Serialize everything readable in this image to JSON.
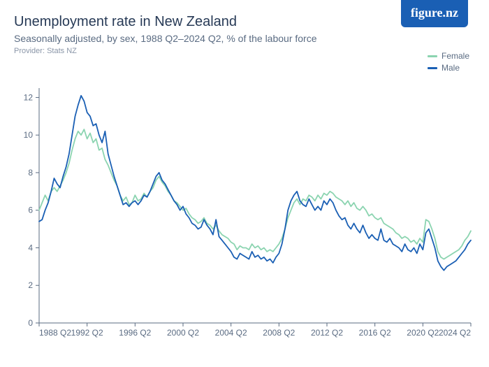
{
  "header": {
    "title": "Unemployment rate in New Zealand",
    "subtitle": "Seasonally adjusted, by sex, 1988 Q2–2024 Q2, % of the labour force",
    "provider": "Provider: Stats NZ"
  },
  "logo": {
    "text_a": "figure.",
    "text_b": "nz"
  },
  "legend": {
    "items": [
      {
        "label": "Female",
        "color": "#8bd4b0"
      },
      {
        "label": "Male",
        "color": "#1a5fb4"
      }
    ]
  },
  "chart": {
    "type": "line",
    "background_color": "#ffffff",
    "axis_color": "#5a6b82",
    "axis_fontsize": 12,
    "title_color": "#273a56",
    "line_width": 1.8,
    "x": {
      "min": 1988.25,
      "max": 2024.25,
      "ticks": [
        1988.25,
        1992.25,
        1996.25,
        2000.25,
        2004.25,
        2008.25,
        2012.25,
        2016.25,
        2020.25,
        2024.25
      ],
      "tick_labels": [
        "1988 Q2",
        "1992 Q2",
        "1996 Q2",
        "2000 Q2",
        "2004 Q2",
        "2008 Q2",
        "2012 Q2",
        "2016 Q2",
        "2020 Q2",
        "2024 Q2"
      ]
    },
    "y": {
      "min": 0,
      "max": 12.5,
      "ticks": [
        0,
        2,
        4,
        6,
        8,
        10,
        12
      ],
      "tick_labels": [
        "0",
        "2",
        "4",
        "6",
        "8",
        "10",
        "12"
      ]
    },
    "series": [
      {
        "name": "Female",
        "color": "#8bd4b0",
        "data": [
          [
            1988.25,
            6.0
          ],
          [
            1988.5,
            6.4
          ],
          [
            1988.75,
            6.8
          ],
          [
            1989.0,
            6.5
          ],
          [
            1989.25,
            7.0
          ],
          [
            1989.5,
            7.2
          ],
          [
            1989.75,
            7.0
          ],
          [
            1990.0,
            7.3
          ],
          [
            1990.25,
            7.6
          ],
          [
            1990.5,
            8.0
          ],
          [
            1990.75,
            8.5
          ],
          [
            1991.0,
            9.2
          ],
          [
            1991.25,
            9.8
          ],
          [
            1991.5,
            10.2
          ],
          [
            1991.75,
            10.0
          ],
          [
            1992.0,
            10.3
          ],
          [
            1992.25,
            9.8
          ],
          [
            1992.5,
            10.1
          ],
          [
            1992.75,
            9.6
          ],
          [
            1993.0,
            9.8
          ],
          [
            1993.25,
            9.2
          ],
          [
            1993.5,
            9.3
          ],
          [
            1993.75,
            8.7
          ],
          [
            1994.0,
            8.4
          ],
          [
            1994.25,
            8.0
          ],
          [
            1994.5,
            7.6
          ],
          [
            1994.75,
            7.3
          ],
          [
            1995.0,
            6.8
          ],
          [
            1995.25,
            6.5
          ],
          [
            1995.5,
            6.7
          ],
          [
            1995.75,
            6.3
          ],
          [
            1996.0,
            6.4
          ],
          [
            1996.25,
            6.8
          ],
          [
            1996.5,
            6.5
          ],
          [
            1996.75,
            6.6
          ],
          [
            1997.0,
            6.9
          ],
          [
            1997.25,
            6.7
          ],
          [
            1997.5,
            7.0
          ],
          [
            1997.75,
            7.2
          ],
          [
            1998.0,
            7.6
          ],
          [
            1998.25,
            7.8
          ],
          [
            1998.5,
            7.5
          ],
          [
            1998.75,
            7.3
          ],
          [
            1999.0,
            7.0
          ],
          [
            1999.25,
            6.8
          ],
          [
            1999.5,
            6.5
          ],
          [
            1999.75,
            6.4
          ],
          [
            2000.0,
            6.2
          ],
          [
            2000.25,
            6.0
          ],
          [
            2000.5,
            6.1
          ],
          [
            2000.75,
            5.8
          ],
          [
            2001.0,
            5.6
          ],
          [
            2001.25,
            5.5
          ],
          [
            2001.5,
            5.3
          ],
          [
            2001.75,
            5.4
          ],
          [
            2002.0,
            5.6
          ],
          [
            2002.25,
            5.3
          ],
          [
            2002.5,
            5.2
          ],
          [
            2002.75,
            5.0
          ],
          [
            2003.0,
            5.2
          ],
          [
            2003.25,
            4.9
          ],
          [
            2003.5,
            4.7
          ],
          [
            2003.75,
            4.6
          ],
          [
            2004.0,
            4.5
          ],
          [
            2004.25,
            4.3
          ],
          [
            2004.5,
            4.2
          ],
          [
            2004.75,
            3.9
          ],
          [
            2005.0,
            4.1
          ],
          [
            2005.25,
            4.0
          ],
          [
            2005.5,
            4.0
          ],
          [
            2005.75,
            3.9
          ],
          [
            2006.0,
            4.2
          ],
          [
            2006.25,
            4.0
          ],
          [
            2006.5,
            4.1
          ],
          [
            2006.75,
            3.9
          ],
          [
            2007.0,
            4.0
          ],
          [
            2007.25,
            3.8
          ],
          [
            2007.5,
            3.9
          ],
          [
            2007.75,
            3.8
          ],
          [
            2008.0,
            4.0
          ],
          [
            2008.25,
            4.2
          ],
          [
            2008.5,
            4.5
          ],
          [
            2008.75,
            5.0
          ],
          [
            2009.0,
            5.6
          ],
          [
            2009.25,
            6.0
          ],
          [
            2009.5,
            6.4
          ],
          [
            2009.75,
            6.6
          ],
          [
            2010.0,
            6.3
          ],
          [
            2010.25,
            6.6
          ],
          [
            2010.5,
            6.5
          ],
          [
            2010.75,
            6.8
          ],
          [
            2011.0,
            6.7
          ],
          [
            2011.25,
            6.5
          ],
          [
            2011.5,
            6.8
          ],
          [
            2011.75,
            6.6
          ],
          [
            2012.0,
            6.9
          ],
          [
            2012.25,
            6.8
          ],
          [
            2012.5,
            7.0
          ],
          [
            2012.75,
            6.9
          ],
          [
            2013.0,
            6.7
          ],
          [
            2013.25,
            6.6
          ],
          [
            2013.5,
            6.5
          ],
          [
            2013.75,
            6.3
          ],
          [
            2014.0,
            6.5
          ],
          [
            2014.25,
            6.2
          ],
          [
            2014.5,
            6.4
          ],
          [
            2014.75,
            6.1
          ],
          [
            2015.0,
            6.0
          ],
          [
            2015.25,
            6.2
          ],
          [
            2015.5,
            6.0
          ],
          [
            2015.75,
            5.7
          ],
          [
            2016.0,
            5.8
          ],
          [
            2016.25,
            5.6
          ],
          [
            2016.5,
            5.5
          ],
          [
            2016.75,
            5.6
          ],
          [
            2017.0,
            5.3
          ],
          [
            2017.25,
            5.2
          ],
          [
            2017.5,
            5.1
          ],
          [
            2017.75,
            5.0
          ],
          [
            2018.0,
            4.8
          ],
          [
            2018.25,
            4.7
          ],
          [
            2018.5,
            4.5
          ],
          [
            2018.75,
            4.6
          ],
          [
            2019.0,
            4.5
          ],
          [
            2019.25,
            4.3
          ],
          [
            2019.5,
            4.4
          ],
          [
            2019.75,
            4.2
          ],
          [
            2020.0,
            4.5
          ],
          [
            2020.25,
            4.3
          ],
          [
            2020.5,
            5.5
          ],
          [
            2020.75,
            5.4
          ],
          [
            2021.0,
            5.0
          ],
          [
            2021.25,
            4.5
          ],
          [
            2021.5,
            3.8
          ],
          [
            2021.75,
            3.5
          ],
          [
            2022.0,
            3.4
          ],
          [
            2022.25,
            3.5
          ],
          [
            2022.5,
            3.6
          ],
          [
            2022.75,
            3.7
          ],
          [
            2023.0,
            3.8
          ],
          [
            2023.25,
            3.9
          ],
          [
            2023.5,
            4.1
          ],
          [
            2023.75,
            4.4
          ],
          [
            2024.0,
            4.6
          ],
          [
            2024.25,
            4.9
          ]
        ]
      },
      {
        "name": "Male",
        "color": "#1a5fb4",
        "data": [
          [
            1988.25,
            5.4
          ],
          [
            1988.5,
            5.5
          ],
          [
            1988.75,
            6.0
          ],
          [
            1989.0,
            6.4
          ],
          [
            1989.25,
            7.0
          ],
          [
            1989.5,
            7.7
          ],
          [
            1989.75,
            7.4
          ],
          [
            1990.0,
            7.2
          ],
          [
            1990.25,
            7.8
          ],
          [
            1990.5,
            8.3
          ],
          [
            1990.75,
            9.0
          ],
          [
            1991.0,
            10.0
          ],
          [
            1991.25,
            11.0
          ],
          [
            1991.5,
            11.6
          ],
          [
            1991.75,
            12.1
          ],
          [
            1992.0,
            11.8
          ],
          [
            1992.25,
            11.2
          ],
          [
            1992.5,
            11.0
          ],
          [
            1992.75,
            10.5
          ],
          [
            1993.0,
            10.6
          ],
          [
            1993.25,
            10.0
          ],
          [
            1993.5,
            9.6
          ],
          [
            1993.75,
            10.2
          ],
          [
            1994.0,
            9.0
          ],
          [
            1994.25,
            8.4
          ],
          [
            1994.5,
            7.8
          ],
          [
            1994.75,
            7.3
          ],
          [
            1995.0,
            6.8
          ],
          [
            1995.25,
            6.3
          ],
          [
            1995.5,
            6.4
          ],
          [
            1995.75,
            6.2
          ],
          [
            1996.0,
            6.4
          ],
          [
            1996.25,
            6.5
          ],
          [
            1996.5,
            6.3
          ],
          [
            1996.75,
            6.5
          ],
          [
            1997.0,
            6.8
          ],
          [
            1997.25,
            6.7
          ],
          [
            1997.5,
            7.0
          ],
          [
            1997.75,
            7.4
          ],
          [
            1998.0,
            7.8
          ],
          [
            1998.25,
            8.0
          ],
          [
            1998.5,
            7.6
          ],
          [
            1998.75,
            7.4
          ],
          [
            1999.0,
            7.1
          ],
          [
            1999.25,
            6.8
          ],
          [
            1999.5,
            6.5
          ],
          [
            1999.75,
            6.3
          ],
          [
            2000.0,
            6.0
          ],
          [
            2000.25,
            6.2
          ],
          [
            2000.5,
            5.8
          ],
          [
            2000.75,
            5.6
          ],
          [
            2001.0,
            5.3
          ],
          [
            2001.25,
            5.2
          ],
          [
            2001.5,
            5.0
          ],
          [
            2001.75,
            5.1
          ],
          [
            2002.0,
            5.5
          ],
          [
            2002.25,
            5.2
          ],
          [
            2002.5,
            5.0
          ],
          [
            2002.75,
            4.7
          ],
          [
            2003.0,
            5.5
          ],
          [
            2003.25,
            4.6
          ],
          [
            2003.5,
            4.4
          ],
          [
            2003.75,
            4.2
          ],
          [
            2004.0,
            4.0
          ],
          [
            2004.25,
            3.8
          ],
          [
            2004.5,
            3.5
          ],
          [
            2004.75,
            3.4
          ],
          [
            2005.0,
            3.7
          ],
          [
            2005.25,
            3.6
          ],
          [
            2005.5,
            3.5
          ],
          [
            2005.75,
            3.4
          ],
          [
            2006.0,
            3.8
          ],
          [
            2006.25,
            3.5
          ],
          [
            2006.5,
            3.6
          ],
          [
            2006.75,
            3.4
          ],
          [
            2007.0,
            3.5
          ],
          [
            2007.25,
            3.3
          ],
          [
            2007.5,
            3.4
          ],
          [
            2007.75,
            3.2
          ],
          [
            2008.0,
            3.5
          ],
          [
            2008.25,
            3.7
          ],
          [
            2008.5,
            4.2
          ],
          [
            2008.75,
            5.0
          ],
          [
            2009.0,
            6.0
          ],
          [
            2009.25,
            6.5
          ],
          [
            2009.5,
            6.8
          ],
          [
            2009.75,
            7.0
          ],
          [
            2010.0,
            6.5
          ],
          [
            2010.25,
            6.3
          ],
          [
            2010.5,
            6.2
          ],
          [
            2010.75,
            6.6
          ],
          [
            2011.0,
            6.3
          ],
          [
            2011.25,
            6.0
          ],
          [
            2011.5,
            6.2
          ],
          [
            2011.75,
            6.0
          ],
          [
            2012.0,
            6.5
          ],
          [
            2012.25,
            6.3
          ],
          [
            2012.5,
            6.6
          ],
          [
            2012.75,
            6.4
          ],
          [
            2013.0,
            6.0
          ],
          [
            2013.25,
            5.7
          ],
          [
            2013.5,
            5.5
          ],
          [
            2013.75,
            5.6
          ],
          [
            2014.0,
            5.2
          ],
          [
            2014.25,
            5.0
          ],
          [
            2014.5,
            5.3
          ],
          [
            2014.75,
            5.0
          ],
          [
            2015.0,
            4.8
          ],
          [
            2015.25,
            5.2
          ],
          [
            2015.5,
            4.8
          ],
          [
            2015.75,
            4.5
          ],
          [
            2016.0,
            4.7
          ],
          [
            2016.25,
            4.5
          ],
          [
            2016.5,
            4.4
          ],
          [
            2016.75,
            5.0
          ],
          [
            2017.0,
            4.4
          ],
          [
            2017.25,
            4.3
          ],
          [
            2017.5,
            4.5
          ],
          [
            2017.75,
            4.2
          ],
          [
            2018.0,
            4.1
          ],
          [
            2018.25,
            4.0
          ],
          [
            2018.5,
            3.8
          ],
          [
            2018.75,
            4.2
          ],
          [
            2019.0,
            3.9
          ],
          [
            2019.25,
            3.8
          ],
          [
            2019.5,
            4.0
          ],
          [
            2019.75,
            3.7
          ],
          [
            2020.0,
            4.2
          ],
          [
            2020.25,
            3.9
          ],
          [
            2020.5,
            4.8
          ],
          [
            2020.75,
            5.0
          ],
          [
            2021.0,
            4.5
          ],
          [
            2021.25,
            4.0
          ],
          [
            2021.5,
            3.3
          ],
          [
            2021.75,
            3.0
          ],
          [
            2022.0,
            2.8
          ],
          [
            2022.25,
            3.0
          ],
          [
            2022.5,
            3.1
          ],
          [
            2022.75,
            3.2
          ],
          [
            2023.0,
            3.3
          ],
          [
            2023.25,
            3.5
          ],
          [
            2023.5,
            3.7
          ],
          [
            2023.75,
            3.9
          ],
          [
            2024.0,
            4.2
          ],
          [
            2024.25,
            4.4
          ]
        ]
      }
    ]
  }
}
